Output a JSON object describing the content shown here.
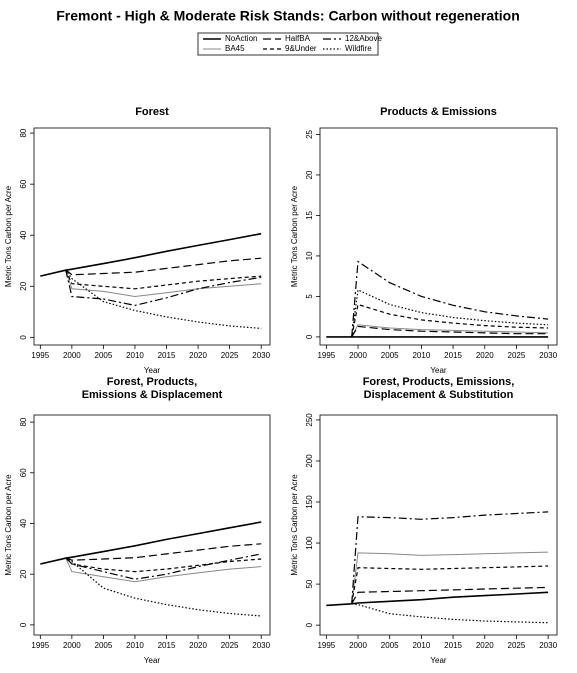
{
  "title": "Fremont  - High & Moderate Risk Stands: Carbon without regeneration",
  "legend": [
    {
      "name": "NoAction",
      "color": "#000000"
    },
    {
      "name": "BA45",
      "color": "#888888"
    },
    {
      "name": "HalfBA",
      "color": "#000000"
    },
    {
      "name": "9&Under",
      "color": "#000000"
    },
    {
      "name": "12&Above",
      "color": "#000000"
    },
    {
      "name": "Wildfire",
      "color": "#000000"
    }
  ],
  "chart_data": [
    {
      "type": "line",
      "title": [
        "Forest"
      ],
      "x_label": "Year",
      "y_label": "Metric Tons Carbon per Acre",
      "x": [
        1995,
        1999,
        2000,
        2005,
        2010,
        2015,
        2020,
        2025,
        2030
      ],
      "xlim": [
        1994,
        2031.4
      ],
      "xticks": [
        1995,
        2000,
        2005,
        2010,
        2015,
        2020,
        2025,
        2030
      ],
      "ylim": [
        -3,
        82
      ],
      "yticks": [
        0,
        20,
        40,
        60,
        80
      ],
      "series": [
        {
          "values": [
            24,
            26.3,
            26.7,
            28.9,
            31.2,
            33.7,
            36,
            38.3,
            40.6
          ]
        },
        {
          "values": [
            null,
            26.5,
            19,
            18,
            16,
            17.5,
            19,
            20,
            21
          ]
        },
        {
          "values": [
            null,
            26.5,
            24.5,
            25,
            25.5,
            27,
            28.5,
            30,
            31
          ]
        },
        {
          "values": [
            null,
            26.5,
            21,
            20,
            19,
            20.5,
            22,
            23,
            24
          ]
        },
        {
          "values": [
            null,
            26.5,
            16,
            15,
            12.5,
            15.5,
            19,
            21.5,
            23.5
          ]
        },
        {
          "values": [
            null,
            26.5,
            23,
            14,
            10.5,
            8,
            6,
            4.5,
            3.5
          ]
        }
      ]
    },
    {
      "type": "line",
      "title": [
        "Products & Emissions"
      ],
      "x_label": "Year",
      "y_label": "Metric Tons Carbon per Acre",
      "x": [
        1995,
        1999,
        2000,
        2005,
        2010,
        2015,
        2020,
        2025,
        2030
      ],
      "xlim": [
        1994,
        2031.4
      ],
      "xticks": [
        1995,
        2000,
        2005,
        2010,
        2015,
        2020,
        2025,
        2030
      ],
      "ylim": [
        -1,
        25.8
      ],
      "yticks": [
        0,
        5,
        10,
        15,
        20,
        25
      ],
      "series": [
        {
          "values": [
            0,
            0,
            0,
            0,
            0,
            0,
            0,
            0,
            0
          ]
        },
        {
          "values": [
            null,
            0,
            1.5,
            1.1,
            0.9,
            0.8,
            0.7,
            0.6,
            0.5
          ]
        },
        {
          "values": [
            null,
            0,
            1.3,
            0.9,
            0.7,
            0.6,
            0.5,
            0.4,
            0.4
          ]
        },
        {
          "values": [
            null,
            0,
            4,
            2.8,
            2.1,
            1.7,
            1.4,
            1.2,
            1.1
          ]
        },
        {
          "values": [
            null,
            0,
            9.3,
            6.7,
            5,
            3.9,
            3.1,
            2.6,
            2.2
          ]
        },
        {
          "values": [
            null,
            0,
            5.8,
            4,
            3,
            2.4,
            2,
            1.7,
            1.5
          ]
        }
      ]
    },
    {
      "type": "line",
      "title": [
        "Forest, Products,",
        "Emissions & Displacement"
      ],
      "x_label": "Year",
      "y_label": "Metric Tons Carbon per Acre",
      "x": [
        1995,
        1999,
        2000,
        2005,
        2010,
        2015,
        2020,
        2025,
        2030
      ],
      "xlim": [
        1994,
        2031.4
      ],
      "xticks": [
        1995,
        2000,
        2005,
        2010,
        2015,
        2020,
        2025,
        2030
      ],
      "ylim": [
        -4,
        82.8
      ],
      "yticks": [
        0,
        20,
        40,
        60,
        80
      ],
      "series": [
        {
          "values": [
            24,
            26.3,
            26.7,
            28.9,
            31.2,
            33.7,
            36,
            38.3,
            40.6
          ]
        },
        {
          "values": [
            null,
            26.5,
            21,
            19,
            17,
            19,
            20.5,
            22,
            23
          ]
        },
        {
          "values": [
            null,
            26.5,
            25.5,
            26,
            26.5,
            28,
            29.5,
            31,
            32
          ]
        },
        {
          "values": [
            null,
            26.5,
            24,
            22,
            21,
            22,
            23.5,
            25,
            26
          ]
        },
        {
          "values": [
            null,
            26.5,
            24,
            21,
            18,
            20,
            23,
            25.5,
            28
          ]
        },
        {
          "values": [
            null,
            26.5,
            25,
            14.5,
            10.5,
            8,
            6,
            4.5,
            3.5
          ]
        }
      ]
    },
    {
      "type": "line",
      "title": [
        "Forest, Products, Emissions,",
        "Displacement & Substitution"
      ],
      "x_label": "Year",
      "y_label": "Metric Tons Carbon per Acre",
      "x": [
        1995,
        1999,
        2000,
        2005,
        2010,
        2015,
        2020,
        2025,
        2030
      ],
      "xlim": [
        1994,
        2031.4
      ],
      "xticks": [
        1995,
        2000,
        2005,
        2010,
        2015,
        2020,
        2025,
        2030
      ],
      "ylim": [
        -12,
        256
      ],
      "yticks": [
        0,
        50,
        100,
        150,
        200,
        250
      ],
      "series": [
        {
          "values": [
            24,
            26,
            27,
            29,
            31,
            34,
            36,
            38,
            40
          ]
        },
        {
          "values": [
            null,
            26,
            88,
            87,
            85,
            86,
            87,
            88,
            89
          ]
        },
        {
          "values": [
            null,
            26,
            40,
            41,
            42,
            43,
            44,
            45,
            46
          ]
        },
        {
          "values": [
            null,
            26,
            70,
            69,
            68,
            69,
            70,
            71,
            72
          ]
        },
        {
          "values": [
            null,
            26,
            132,
            131,
            129,
            131,
            134,
            136,
            138
          ]
        },
        {
          "values": [
            null,
            26,
            25,
            14,
            10,
            7,
            5,
            4,
            3
          ]
        }
      ]
    }
  ]
}
